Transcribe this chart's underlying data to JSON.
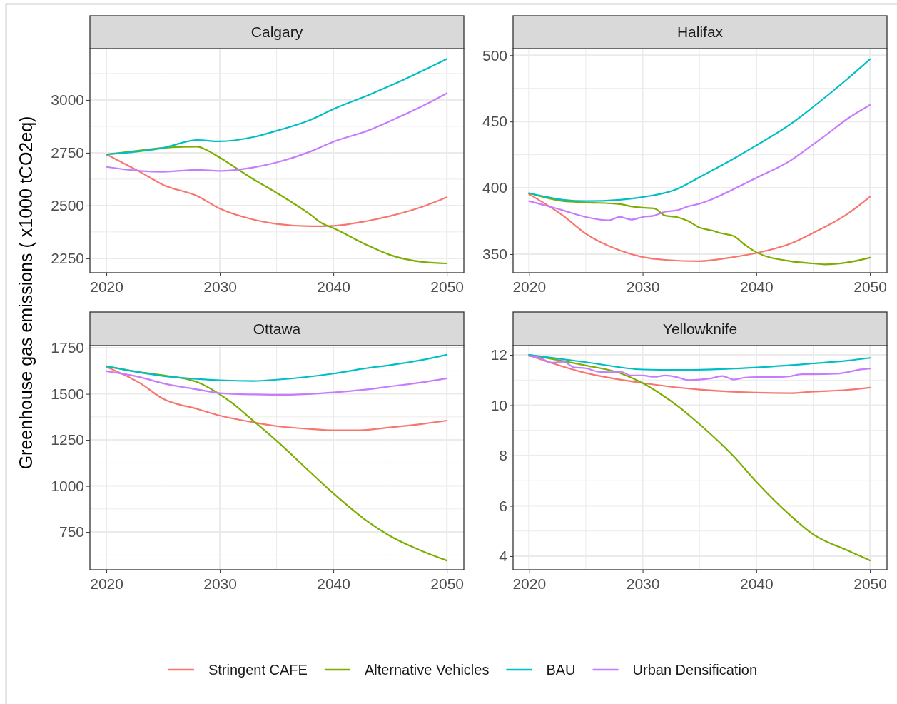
{
  "chart_data": [
    {
      "type": "line",
      "title": "Calgary",
      "ylabel": "Greenhouse gas emissions ( x1000 tCO2eq)",
      "legend": "bottom",
      "grid": true,
      "line_style": "solid",
      "xlim": [
        2018.55,
        2051.5
      ],
      "xticks": [
        2020,
        2030,
        2040,
        2050
      ],
      "ylim": [
        2182,
        3243
      ],
      "yticks": [
        2250,
        2500,
        2750,
        3000
      ],
      "series": [
        {
          "name": "Stringent CAFE",
          "color": "#f8766d",
          "x": [
            2020,
            2023,
            2025,
            2028,
            2030,
            2033,
            2035,
            2038,
            2040,
            2043,
            2045,
            2048,
            2050
          ],
          "values": [
            2742,
            2658,
            2598,
            2545,
            2485,
            2433,
            2413,
            2402,
            2404,
            2427,
            2450,
            2497,
            2539
          ]
        },
        {
          "name": "Alternative Vehicles",
          "color": "#7cae00",
          "x": [
            2020,
            2023,
            2025,
            2028,
            2029,
            2030,
            2033,
            2035,
            2038,
            2039,
            2040,
            2043,
            2045,
            2048,
            2050
          ],
          "values": [
            2742,
            2761,
            2773,
            2779,
            2758,
            2727,
            2623,
            2560,
            2456,
            2416,
            2393,
            2312,
            2266,
            2232,
            2226
          ]
        },
        {
          "name": "BAU",
          "color": "#00bfc4",
          "x": [
            2020,
            2025,
            2028,
            2030,
            2033,
            2035,
            2038,
            2040,
            2043,
            2045,
            2048,
            2050
          ],
          "values": [
            2742,
            2773,
            2810,
            2804,
            2825,
            2854,
            2906,
            2957,
            3021,
            3067,
            3142,
            3194
          ]
        },
        {
          "name": "Urban Densification",
          "color": "#c77cff",
          "x": [
            2020,
            2023,
            2025,
            2028,
            2030,
            2033,
            2035,
            2038,
            2040,
            2043,
            2045,
            2048,
            2050
          ],
          "values": [
            2683,
            2664,
            2660,
            2669,
            2664,
            2681,
            2704,
            2756,
            2802,
            2854,
            2900,
            2975,
            3032
          ]
        }
      ]
    },
    {
      "type": "line",
      "title": "Halifax",
      "grid": true,
      "line_style": "solid",
      "xlim": [
        2018.6,
        2051.5
      ],
      "xticks": [
        2020,
        2030,
        2040,
        2050
      ],
      "ylim": [
        336,
        505
      ],
      "yticks": [
        350,
        400,
        450,
        500
      ],
      "series": [
        {
          "color": "#f8766d",
          "x": [
            2020,
            2023,
            2025,
            2028,
            2030,
            2032,
            2035,
            2038,
            2040,
            2043,
            2045,
            2048,
            2050
          ],
          "values": [
            395.3,
            379,
            365.4,
            352.8,
            347.8,
            345.7,
            344.7,
            347.8,
            350.8,
            357.9,
            366,
            380.2,
            393.3
          ]
        },
        {
          "color": "#7cae00",
          "x": [
            2020,
            2023,
            2025,
            2028,
            2029,
            2030,
            2031,
            2032,
            2033,
            2034,
            2035,
            2036,
            2037,
            2038,
            2039,
            2040,
            2043,
            2045,
            2046,
            2048,
            2050
          ],
          "values": [
            396,
            390,
            389,
            387.7,
            386,
            385,
            384.5,
            379,
            378,
            375,
            370,
            368,
            365.6,
            363.7,
            357,
            351.4,
            344.7,
            343,
            342.3,
            343.7,
            347.4
          ]
        },
        {
          "color": "#00bfc4",
          "x": [
            2020,
            2023,
            2025,
            2028,
            2030,
            2033,
            2035,
            2038,
            2040,
            2043,
            2045,
            2048,
            2050
          ],
          "values": [
            396,
            391,
            390,
            391,
            393,
            399,
            408,
            422,
            432,
            448,
            461,
            482,
            497
          ]
        },
        {
          "color": "#c77cff",
          "x": [
            2020,
            2023,
            2025,
            2027,
            2028,
            2029,
            2030,
            2031,
            2032,
            2033,
            2034,
            2035,
            2036,
            2038,
            2040,
            2043,
            2045,
            2046,
            2048,
            2050
          ],
          "values": [
            390,
            383,
            378,
            375.5,
            378,
            376,
            378,
            379,
            382,
            383,
            386,
            388,
            391,
            399,
            407.5,
            420.6,
            432.8,
            439,
            452,
            462.5
          ]
        }
      ]
    },
    {
      "type": "line",
      "title": "Ottawa",
      "grid": true,
      "line_style": "solid",
      "xlim": [
        2018.55,
        2051.5
      ],
      "xticks": [
        2020,
        2030,
        2040,
        2050
      ],
      "ylim": [
        545,
        1762
      ],
      "yticks": [
        750,
        1000,
        1250,
        1500,
        1750
      ],
      "series": [
        {
          "color": "#f8766d",
          "x": [
            2020,
            2023,
            2025,
            2028,
            2030,
            2033,
            2035,
            2038,
            2040,
            2042,
            2045,
            2048,
            2050
          ],
          "values": [
            1647,
            1557,
            1473,
            1418,
            1382,
            1345,
            1325,
            1309,
            1302,
            1302,
            1318,
            1338,
            1355
          ]
        },
        {
          "color": "#7cae00",
          "x": [
            2020,
            2023,
            2025,
            2028,
            2030,
            2031,
            2033,
            2035,
            2038,
            2040,
            2043,
            2045,
            2048,
            2050
          ],
          "values": [
            1650,
            1617,
            1601,
            1564,
            1497,
            1454,
            1351,
            1245,
            1073,
            960,
            808,
            728,
            642,
            595
          ]
        },
        {
          "color": "#00bfc4",
          "x": [
            2020,
            2025,
            2030,
            2033,
            2035,
            2040,
            2043,
            2045,
            2048,
            2050
          ],
          "values": [
            1650,
            1597,
            1574,
            1570,
            1577,
            1610,
            1640,
            1656,
            1686,
            1712
          ]
        },
        {
          "color": "#c77cff",
          "x": [
            2020,
            2023,
            2025,
            2028,
            2030,
            2033,
            2036,
            2040,
            2043,
            2045,
            2048,
            2050
          ],
          "values": [
            1623,
            1590,
            1557,
            1524,
            1504,
            1497,
            1495,
            1508,
            1524,
            1540,
            1564,
            1584
          ]
        }
      ]
    },
    {
      "type": "line",
      "title": "Yellowknife",
      "grid": true,
      "line_style": "solid",
      "xlim": [
        2018.6,
        2051.5
      ],
      "xticks": [
        2020,
        2030,
        2040,
        2050
      ],
      "ylim": [
        3.46,
        12.37
      ],
      "yticks": [
        4,
        6,
        8,
        10,
        12
      ],
      "series": [
        {
          "color": "#f8766d",
          "x": [
            2020,
            2025,
            2030,
            2035,
            2040,
            2043,
            2045,
            2048,
            2050
          ],
          "values": [
            11.98,
            11.28,
            10.88,
            10.62,
            10.5,
            10.48,
            10.54,
            10.61,
            10.7
          ]
        },
        {
          "color": "#7cae00",
          "x": [
            2020,
            2023,
            2025,
            2028,
            2030,
            2032,
            2033,
            2035,
            2038,
            2040,
            2043,
            2045,
            2048,
            2050
          ],
          "values": [
            12,
            11.76,
            11.58,
            11.28,
            10.88,
            10.32,
            10,
            9.25,
            7.97,
            6.96,
            5.62,
            4.87,
            4.23,
            3.83
          ]
        },
        {
          "color": "#00bfc4",
          "x": [
            2020,
            2025,
            2030,
            2033,
            2035,
            2040,
            2045,
            2048,
            2050
          ],
          "values": [
            12,
            11.71,
            11.42,
            11.4,
            11.41,
            11.5,
            11.66,
            11.77,
            11.88
          ]
        },
        {
          "color": "#c77cff",
          "x": [
            2020,
            2021,
            2022,
            2023,
            2024,
            2025,
            2026,
            2027,
            2028,
            2029,
            2030,
            2031,
            2032,
            2033,
            2034,
            2035,
            2036,
            2037,
            2038,
            2039,
            2040,
            2042,
            2043,
            2044,
            2045,
            2047,
            2048,
            2049,
            2050
          ],
          "values": [
            11.96,
            11.87,
            11.69,
            11.73,
            11.5,
            11.47,
            11.34,
            11.31,
            11.34,
            11.18,
            11.18,
            11.13,
            11.18,
            11.12,
            11,
            11.02,
            11.07,
            11.16,
            11.02,
            11.1,
            11.12,
            11.12,
            11.15,
            11.23,
            11.23,
            11.25,
            11.31,
            11.41,
            11.46
          ]
        }
      ]
    }
  ]
}
